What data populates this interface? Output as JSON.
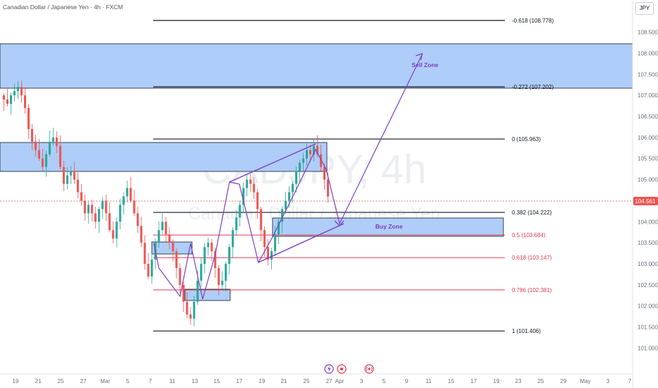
{
  "header": {
    "symbol_title": "Canadian Dollar / Japanese Yen · 4h · FXCM",
    "currency_button": "JPY"
  },
  "watermark": {
    "ticker": "CADJPY, 4h",
    "name": "Canadian Dollar / Japanese Yen"
  },
  "price_axis": {
    "ticks": [
      "108.500",
      "108.000",
      "107.500",
      "107.000",
      "106.500",
      "106.000",
      "105.500",
      "105.000",
      "104.500",
      "104.000",
      "103.500",
      "103.000",
      "102.500",
      "102.000",
      "101.500",
      "101.000"
    ],
    "current_price": "104.561"
  },
  "time_axis": {
    "ticks": [
      "19",
      "21",
      "25",
      "27",
      "Mar",
      "5",
      "7",
      "11",
      "13",
      "15",
      "17",
      "19",
      "21",
      "25",
      "27",
      "Apr",
      "3",
      "5",
      "9",
      "11",
      "15",
      "17",
      "19",
      "23",
      "25",
      "29",
      "May",
      "3",
      "7"
    ]
  },
  "fib_levels": [
    {
      "label": "-0.618 (108.778)",
      "price": 108.778,
      "color": "#131722"
    },
    {
      "label": "-0.272 (107.202)",
      "price": 107.202,
      "color": "#131722"
    },
    {
      "label": "0 (105.963)",
      "price": 105.963,
      "color": "#131722"
    },
    {
      "label": "0.382 (104.222)",
      "price": 104.222,
      "color": "#131722"
    },
    {
      "label": "0.5 (103.684)",
      "price": 103.684,
      "color": "#e53950"
    },
    {
      "label": "0.618 (103.147)",
      "price": 103.147,
      "color": "#e53950"
    },
    {
      "label": "0.786 (102.381)",
      "price": 102.381,
      "color": "#e53950"
    },
    {
      "label": "1 (101.406)",
      "price": 101.406,
      "color": "#131722"
    }
  ],
  "zones": {
    "sell_label": "Sell Zone",
    "buy_label": "Buy Zone"
  },
  "colors": {
    "bull": "#26a69a",
    "bear": "#ef5350",
    "zone_fill": "#aecdf8",
    "drawing": "#7e3fc4",
    "price_tag": "#ef5350"
  },
  "icons": [
    "lightning-icon",
    "target-icon",
    "broadcast-icon"
  ],
  "chart_data": {
    "type": "candlestick",
    "symbol": "CADJPY",
    "timeframe": "4h",
    "y_range": [
      100.9,
      109.2
    ],
    "current_price": 104.561,
    "annotations": [
      "Sell Zone",
      "Buy Zone"
    ],
    "closes_approx": [
      106.9,
      106.8,
      107.0,
      107.1,
      107.2,
      107.0,
      106.7,
      106.2,
      105.9,
      105.7,
      105.5,
      105.3,
      105.6,
      105.9,
      106.0,
      105.8,
      105.3,
      104.9,
      105.1,
      105.2,
      105.0,
      104.7,
      104.5,
      104.2,
      104.4,
      104.2,
      104.0,
      104.3,
      104.5,
      104.2,
      103.8,
      103.6,
      104.0,
      104.4,
      104.6,
      104.8,
      104.5,
      104.2,
      103.9,
      103.5,
      103.0,
      102.7,
      103.1,
      103.5,
      103.8,
      104.0,
      103.7,
      103.5,
      103.3,
      102.9,
      102.5,
      102.1,
      101.8,
      101.7,
      102.1,
      102.6,
      103.0,
      103.4,
      103.5,
      103.3,
      102.9,
      102.5,
      102.6,
      103.0,
      103.4,
      103.8,
      104.1,
      104.4,
      104.8,
      105.0,
      104.9,
      104.7,
      104.3,
      103.8,
      103.4,
      103.1,
      103.3,
      103.7,
      104.0,
      104.3,
      104.5,
      104.7,
      104.9,
      105.2,
      105.4,
      105.5,
      105.7,
      105.6,
      105.8,
      105.6,
      105.3,
      105.0,
      104.6
    ]
  }
}
